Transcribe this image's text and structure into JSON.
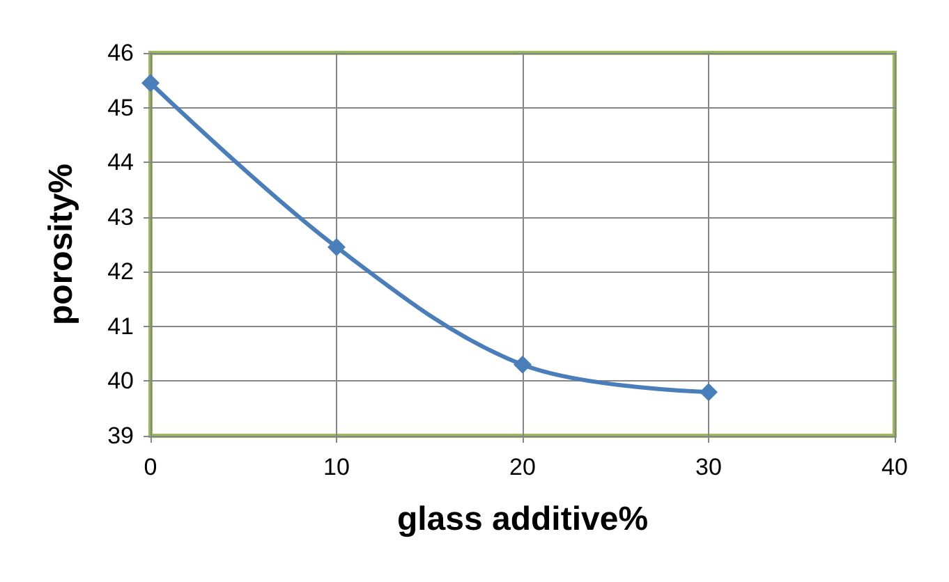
{
  "chart_data": {
    "type": "line",
    "xlabel": "glass additive%",
    "ylabel": "porosity%",
    "x": [
      0,
      10,
      20,
      30
    ],
    "series": [
      {
        "color": "#4a7ebb",
        "values": [
          45.45,
          42.45,
          40.3,
          39.8
        ]
      }
    ],
    "xlim": [
      0,
      40
    ],
    "xticks": [
      0,
      10,
      20,
      30,
      40
    ],
    "ylim": [
      39,
      46
    ],
    "yticks": [
      39,
      40,
      41,
      42,
      43,
      44,
      45,
      46
    ],
    "grid": true,
    "marker": "diamond",
    "line_style": "solid"
  }
}
